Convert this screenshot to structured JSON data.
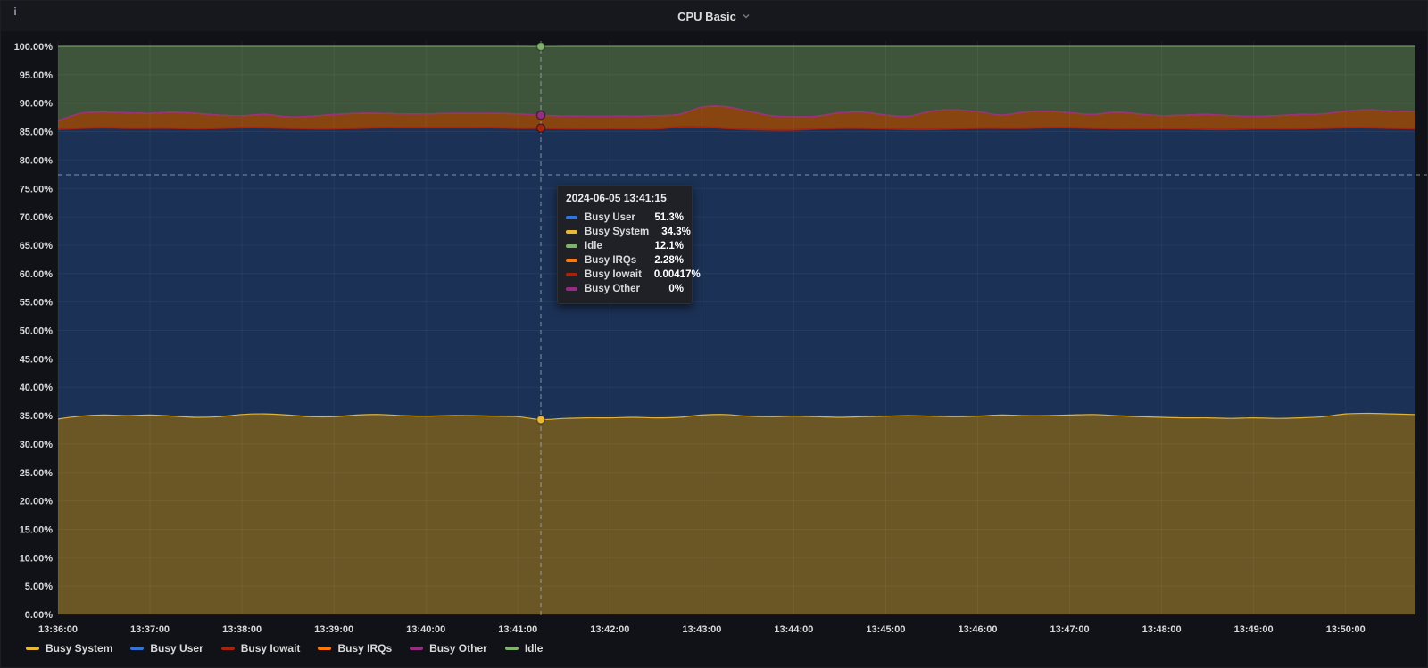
{
  "panel": {
    "title": "CPU Basic",
    "info_icon": "i"
  },
  "chart_data": {
    "type": "area",
    "stacked": true,
    "title": "CPU Basic",
    "x_start": "13:36:00",
    "x_step_seconds": 15,
    "x_tick_labels": [
      "13:36:00",
      "13:37:00",
      "13:38:00",
      "13:39:00",
      "13:40:00",
      "13:41:00",
      "13:42:00",
      "13:43:00",
      "13:44:00",
      "13:45:00",
      "13:46:00",
      "13:47:00",
      "13:48:00",
      "13:49:00",
      "13:50:00"
    ],
    "y_tick_labels": [
      "0.00%",
      "5.00%",
      "10.00%",
      "15.00%",
      "20.00%",
      "25.00%",
      "30.00%",
      "35.00%",
      "40.00%",
      "45.00%",
      "50.00%",
      "55.00%",
      "60.00%",
      "65.00%",
      "70.00%",
      "75.00%",
      "80.00%",
      "85.00%",
      "90.00%",
      "95.00%",
      "100.00%"
    ],
    "ylim": [
      0,
      100
    ],
    "grid": true,
    "legend_position": "bottom-left",
    "series": [
      {
        "name": "Busy System",
        "color": "#EAB839",
        "fill": "rgba(234,184,57,0.42)",
        "values": [
          34.4,
          34.9,
          35.1,
          35.0,
          35.1,
          34.9,
          34.7,
          34.8,
          35.2,
          35.3,
          35.1,
          34.8,
          34.8,
          35.1,
          35.2,
          35.0,
          34.9,
          35.0,
          35.0,
          34.9,
          34.8,
          34.3,
          34.5,
          34.6,
          34.6,
          34.7,
          34.6,
          34.7,
          35.1,
          35.2,
          34.9,
          34.8,
          34.9,
          34.8,
          34.7,
          34.8,
          34.9,
          35.0,
          34.9,
          34.8,
          34.9,
          35.1,
          35.0,
          35.0,
          35.1,
          35.2,
          35.0,
          34.8,
          34.7,
          34.6,
          34.6,
          34.5,
          34.6,
          34.5,
          34.6,
          34.8,
          35.3,
          35.4,
          35.3,
          35.2
        ]
      },
      {
        "name": "Busy User",
        "color": "#3274D9",
        "fill": "rgba(50,116,217,0.32)",
        "values": [
          51.0,
          50.7,
          50.6,
          50.6,
          50.5,
          50.7,
          50.8,
          50.8,
          50.5,
          50.4,
          50.5,
          50.7,
          50.7,
          50.5,
          50.5,
          50.7,
          50.8,
          50.7,
          50.7,
          50.8,
          50.8,
          51.3,
          51.0,
          50.9,
          50.9,
          50.8,
          50.9,
          51.1,
          50.7,
          50.4,
          50.5,
          50.5,
          50.4,
          50.7,
          50.9,
          50.8,
          50.6,
          50.4,
          50.5,
          50.7,
          50.7,
          50.5,
          50.6,
          50.7,
          50.6,
          50.4,
          50.5,
          50.7,
          50.8,
          50.9,
          50.8,
          50.9,
          50.9,
          51.0,
          50.9,
          50.8,
          50.4,
          50.3,
          50.3,
          50.3
        ]
      },
      {
        "name": "Busy Iowait",
        "color": "#A8230D",
        "fill": "rgba(168,35,13,0.5)",
        "values": [
          0.004,
          0.004,
          0.004,
          0.004,
          0.004,
          0.004,
          0.004,
          0.004,
          0.004,
          0.004,
          0.004,
          0.004,
          0.004,
          0.004,
          0.004,
          0.004,
          0.004,
          0.004,
          0.004,
          0.004,
          0.004,
          0.00417,
          0.004,
          0.004,
          0.004,
          0.004,
          0.004,
          0.004,
          0.004,
          0.004,
          0.004,
          0.004,
          0.004,
          0.004,
          0.004,
          0.004,
          0.004,
          0.004,
          0.004,
          0.004,
          0.004,
          0.004,
          0.004,
          0.004,
          0.004,
          0.004,
          0.004,
          0.004,
          0.004,
          0.004,
          0.004,
          0.004,
          0.004,
          0.004,
          0.004,
          0.004,
          0.004,
          0.004,
          0.004,
          0.004
        ]
      },
      {
        "name": "Busy IRQs",
        "color": "#FF780A",
        "fill": "rgba(255,120,10,0.5)",
        "values": [
          1.5,
          2.6,
          2.7,
          2.7,
          2.6,
          2.8,
          2.7,
          2.3,
          2.1,
          2.3,
          2.0,
          2.2,
          2.5,
          2.6,
          2.5,
          2.4,
          2.4,
          2.5,
          2.5,
          2.5,
          2.5,
          2.28,
          2.2,
          2.2,
          2.2,
          2.2,
          2.3,
          2.2,
          3.5,
          3.8,
          3.2,
          2.5,
          2.3,
          2.2,
          2.7,
          2.8,
          2.4,
          2.3,
          3.2,
          3.3,
          2.9,
          2.3,
          2.8,
          2.9,
          2.6,
          2.4,
          2.9,
          2.6,
          2.3,
          2.4,
          2.6,
          2.4,
          2.2,
          2.3,
          2.5,
          2.5,
          2.9,
          3.1,
          3.0,
          3.0
        ]
      },
      {
        "name": "Busy Other",
        "color": "#962D82",
        "fill": "rgba(150,45,130,0.5)",
        "values": [
          0,
          0,
          0,
          0,
          0,
          0,
          0,
          0,
          0,
          0,
          0,
          0,
          0,
          0,
          0,
          0,
          0,
          0,
          0,
          0,
          0,
          0,
          0,
          0,
          0,
          0,
          0,
          0,
          0,
          0,
          0,
          0,
          0,
          0,
          0,
          0,
          0,
          0,
          0,
          0,
          0,
          0,
          0,
          0,
          0,
          0,
          0,
          0,
          0,
          0,
          0,
          0,
          0,
          0,
          0,
          0,
          0,
          0,
          0,
          0
        ]
      },
      {
        "name": "Idle",
        "color": "#7EB26D",
        "fill": "rgba(126,178,109,0.42)",
        "values": [
          13.1,
          11.8,
          11.6,
          11.7,
          11.8,
          11.6,
          11.8,
          12.1,
          12.2,
          12.0,
          12.4,
          12.3,
          12.0,
          11.8,
          11.8,
          11.9,
          11.9,
          11.8,
          11.8,
          11.8,
          11.9,
          12.1,
          12.3,
          12.3,
          12.3,
          12.3,
          12.2,
          12.0,
          10.7,
          10.6,
          11.4,
          12.2,
          12.4,
          12.3,
          11.7,
          11.6,
          12.1,
          12.3,
          11.4,
          11.2,
          11.5,
          12.1,
          11.6,
          11.4,
          11.7,
          12.0,
          11.6,
          11.9,
          12.2,
          12.1,
          12.0,
          12.2,
          12.3,
          12.2,
          12.0,
          11.9,
          11.4,
          11.2,
          11.4,
          11.5
        ]
      }
    ],
    "crosshair": {
      "time_label": "13:41:15",
      "x_index": 21,
      "h_line_pct": 77.4
    }
  },
  "tooltip": {
    "title": "2024-06-05 13:41:15",
    "rows": [
      {
        "label": "Busy User",
        "value": "51.3%",
        "color": "#3274D9"
      },
      {
        "label": "Busy System",
        "value": "34.3%",
        "color": "#EAB839"
      },
      {
        "label": "Idle",
        "value": "12.1%",
        "color": "#7EB26D"
      },
      {
        "label": "Busy IRQs",
        "value": "2.28%",
        "color": "#FF780A"
      },
      {
        "label": "Busy Iowait",
        "value": "0.00417%",
        "color": "#A8230D"
      },
      {
        "label": "Busy Other",
        "value": "0%",
        "color": "#962D82"
      }
    ]
  },
  "colors": {
    "panel_bg": "#111217",
    "grid": "rgba(255,255,255,0.05)",
    "crosshair": "rgba(174,190,205,0.7)",
    "axis_text": "#d8d9da"
  }
}
